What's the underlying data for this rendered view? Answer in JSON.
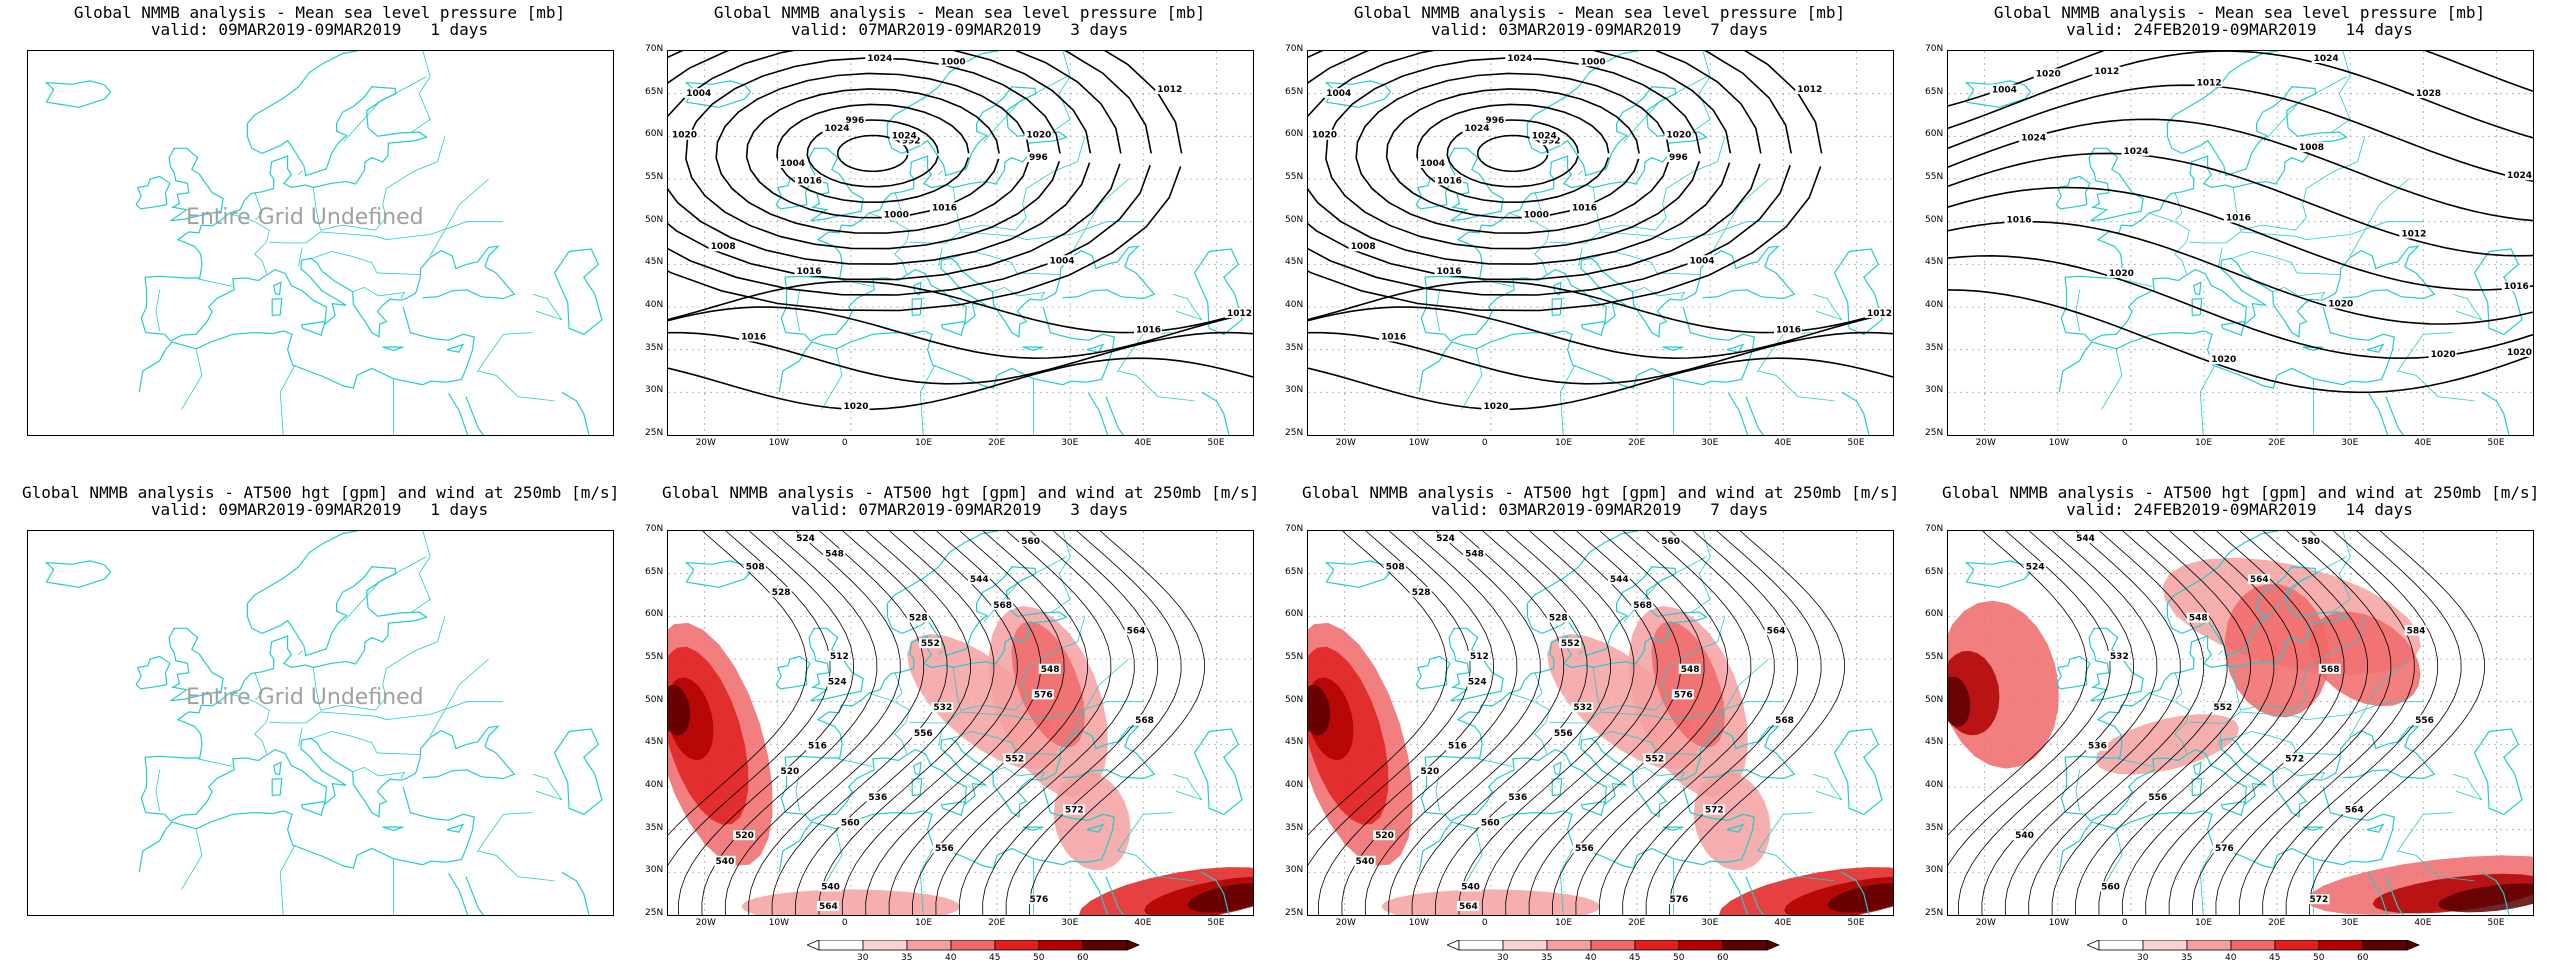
{
  "colors": {
    "coast": "#22cccc",
    "grid": "#aaaaaa",
    "contour": "#000000",
    "wind": [
      "#ffffff",
      "#fcd2d2",
      "#f6a0a0",
      "#f06868",
      "#e02020",
      "#b00000",
      "#5a0000"
    ]
  },
  "lat_labels": [
    "70N",
    "65N",
    "60N",
    "55N",
    "50N",
    "45N",
    "40N",
    "35N",
    "30N",
    "25N"
  ],
  "lon_labels": [
    "20W",
    "10W",
    "0",
    "10E",
    "20E",
    "30E",
    "40E",
    "50E"
  ],
  "undefined_text": "Entire Grid Undefined",
  "panels": [
    {
      "id": "mslp-1",
      "line1": "Global NMMB analysis - Mean sea level pressure [mb]",
      "line2": "valid: 09MAR2019-09MAR2019   1 days",
      "kind": "mslp",
      "undefined": true,
      "labels": []
    },
    {
      "id": "mslp-3",
      "line1": "Global NMMB analysis - Mean sea level pressure [mb]",
      "line2": "valid: 07MAR2019-09MAR2019   3 days",
      "kind": "mslp",
      "undefined": false,
      "labels": [
        "992",
        "996",
        "1004",
        "1000",
        "996",
        "1000",
        "1004",
        "1008",
        "1004",
        "1012",
        "1016",
        "1012",
        "1016",
        "1020",
        "1024",
        "1024",
        "1016",
        "1016",
        "1020",
        "1024",
        "1020",
        "1016"
      ]
    },
    {
      "id": "mslp-7",
      "line1": "Global NMMB analysis - Mean sea level pressure [mb]",
      "line2": "valid: 03MAR2019-09MAR2019   7 days",
      "kind": "mslp",
      "undefined": false,
      "labels": [
        "992",
        "996",
        "1004",
        "1000",
        "996",
        "1000",
        "1004",
        "1008",
        "1004",
        "1012",
        "1016",
        "1012",
        "1016",
        "1020",
        "1024",
        "1024",
        "1016",
        "1016",
        "1020",
        "1024",
        "1020",
        "1016"
      ]
    },
    {
      "id": "mslp-14",
      "line1": "Global NMMB analysis - Mean sea level pressure [mb]",
      "line2": "valid: 24FEB2019-09MAR2019   14 days",
      "kind": "mslp",
      "undefined": false,
      "labels": [
        "1004",
        "1012",
        "1012",
        "1008",
        "1012",
        "1016",
        "1016",
        "1020",
        "1020",
        "1024",
        "1028",
        "1024",
        "1024",
        "1024",
        "1016",
        "1020",
        "1020",
        "1020",
        "1020"
      ]
    },
    {
      "id": "z500-1",
      "line1": "Global NMMB analysis - AT500 hgt [gpm] and wind at 250mb [m/s]",
      "line2": "valid: 09MAR2019-09MAR2019   1 days",
      "kind": "z500",
      "undefined": true,
      "labels": []
    },
    {
      "id": "z500-3",
      "line1": "Global NMMB analysis - AT500 hgt [gpm] and wind at 250mb [m/s]",
      "line2": "valid: 07MAR2019-09MAR2019   3 days",
      "kind": "z500",
      "undefined": false,
      "labels": [
        "508",
        "512",
        "516",
        "520",
        "524",
        "528",
        "532",
        "536",
        "540",
        "544",
        "548",
        "552",
        "556",
        "560",
        "564",
        "568",
        "572",
        "576",
        "528",
        "524",
        "520",
        "540",
        "548",
        "552",
        "556",
        "560",
        "564",
        "568",
        "576"
      ]
    },
    {
      "id": "z500-7",
      "line1": "Global NMMB analysis - AT500 hgt [gpm] and wind at 250mb [m/s]",
      "line2": "valid: 03MAR2019-09MAR2019   7 days",
      "kind": "z500",
      "undefined": false,
      "labels": [
        "508",
        "512",
        "516",
        "520",
        "524",
        "528",
        "532",
        "536",
        "540",
        "544",
        "548",
        "552",
        "556",
        "560",
        "564",
        "568",
        "572",
        "576",
        "528",
        "524",
        "520",
        "540",
        "548",
        "552",
        "556",
        "560",
        "564",
        "568",
        "576"
      ]
    },
    {
      "id": "z500-14",
      "line1": "Global NMMB analysis - AT500 hgt [gpm] and wind at 250mb [m/s]",
      "line2": "valid: 24FEB2019-09MAR2019   14 days",
      "kind": "z500",
      "undefined": false,
      "labels": [
        "524",
        "532",
        "536",
        "540",
        "544",
        "548",
        "552",
        "556",
        "560",
        "564",
        "568",
        "572",
        "576",
        "580",
        "584",
        "556",
        "564",
        "572"
      ]
    }
  ],
  "colorbar_labels": [
    "30",
    "35",
    "40",
    "45",
    "50",
    "60"
  ]
}
